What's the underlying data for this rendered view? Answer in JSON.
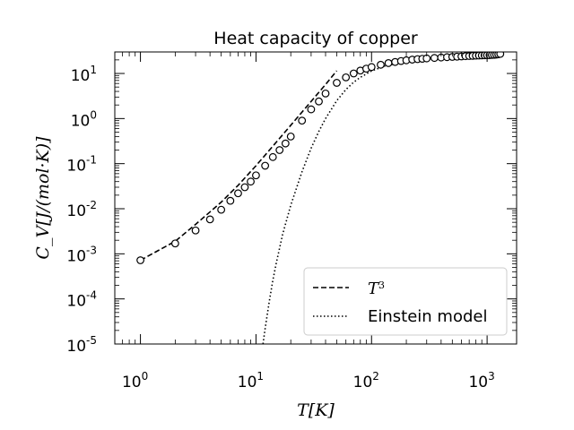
{
  "chart_data": {
    "type": "scatter",
    "title": "Heat capacity of copper",
    "xlabel": "T[K]",
    "ylabel": "C_V[J/(mol·K)]",
    "xscale": "log",
    "yscale": "log",
    "xlim": [
      0.6,
      1800
    ],
    "ylim": [
      1e-05,
      30
    ],
    "grid": false,
    "legend_position": "bottom-right",
    "x_ticks": [
      {
        "base": "10",
        "exp": "0",
        "value": 1
      },
      {
        "base": "10",
        "exp": "1",
        "value": 10
      },
      {
        "base": "10",
        "exp": "2",
        "value": 100
      },
      {
        "base": "10",
        "exp": "3",
        "value": 1000
      }
    ],
    "y_ticks": [
      {
        "base": "10",
        "exp": "1",
        "value": 10
      },
      {
        "base": "10",
        "exp": "0",
        "value": 1
      },
      {
        "base": "10",
        "exp": "-1",
        "value": 0.1
      },
      {
        "base": "10",
        "exp": "-2",
        "value": 0.01
      },
      {
        "base": "10",
        "exp": "-3",
        "value": 0.001
      },
      {
        "base": "10",
        "exp": "-4",
        "value": 0.0001
      },
      {
        "base": "10",
        "exp": "-5",
        "value": 1e-05
      }
    ],
    "series": [
      {
        "kind": "markers",
        "marker": "open-circle",
        "color": "#000000",
        "points": [
          [
            1,
            0.00072
          ],
          [
            2,
            0.0017
          ],
          [
            3,
            0.0033
          ],
          [
            4,
            0.0058
          ],
          [
            5,
            0.0095
          ],
          [
            6,
            0.015
          ],
          [
            7,
            0.022
          ],
          [
            8,
            0.03
          ],
          [
            9,
            0.04
          ],
          [
            10,
            0.055
          ],
          [
            12,
            0.09
          ],
          [
            14,
            0.14
          ],
          [
            16,
            0.2
          ],
          [
            18,
            0.28
          ],
          [
            20,
            0.4
          ],
          [
            25,
            0.9
          ],
          [
            30,
            1.6
          ],
          [
            35,
            2.4
          ],
          [
            40,
            3.6
          ],
          [
            50,
            6.2
          ],
          [
            60,
            8.2
          ],
          [
            70,
            10.0
          ],
          [
            80,
            11.6
          ],
          [
            90,
            12.8
          ],
          [
            100,
            13.9
          ],
          [
            120,
            15.6
          ],
          [
            140,
            17.0
          ],
          [
            160,
            18.0
          ],
          [
            180,
            18.9
          ],
          [
            200,
            19.6
          ],
          [
            225,
            20.3
          ],
          [
            250,
            20.8
          ],
          [
            275,
            21.2
          ],
          [
            300,
            21.6
          ],
          [
            350,
            22.1
          ],
          [
            400,
            22.6
          ],
          [
            450,
            23.0
          ],
          [
            500,
            23.3
          ],
          [
            550,
            23.6
          ],
          [
            600,
            23.9
          ],
          [
            650,
            24.2
          ],
          [
            700,
            24.4
          ],
          [
            750,
            24.6
          ],
          [
            800,
            24.8
          ],
          [
            850,
            25.0
          ],
          [
            900,
            25.1
          ],
          [
            950,
            25.3
          ],
          [
            1000,
            25.4
          ],
          [
            1050,
            25.5
          ],
          [
            1100,
            25.7
          ],
          [
            1150,
            25.9
          ],
          [
            1200,
            26.2
          ],
          [
            1250,
            26.6
          ],
          [
            1300,
            27.2
          ]
        ]
      },
      {
        "name": "T^3",
        "kind": "line",
        "dash": "dashed",
        "color": "#000000",
        "points": [
          [
            1,
            0.00072
          ],
          [
            2,
            0.0019
          ],
          [
            3,
            0.0045
          ],
          [
            4,
            0.0085
          ],
          [
            5,
            0.014
          ],
          [
            7,
            0.033
          ],
          [
            10,
            0.09
          ],
          [
            15,
            0.3
          ],
          [
            20,
            0.71
          ],
          [
            30,
            2.4
          ],
          [
            40,
            5.7
          ],
          [
            50,
            11.5
          ]
        ]
      },
      {
        "name": "Einstein model",
        "kind": "line",
        "dash": "dotted",
        "color": "#000000",
        "points": [
          [
            11.5,
            1e-05
          ],
          [
            12,
            2.2e-05
          ],
          [
            13,
            8.5e-05
          ],
          [
            14,
            0.00026
          ],
          [
            15,
            0.00063
          ],
          [
            17,
            0.0027
          ],
          [
            20,
            0.012
          ],
          [
            25,
            0.066
          ],
          [
            30,
            0.22
          ],
          [
            35,
            0.52
          ],
          [
            40,
            1.0
          ],
          [
            50,
            2.5
          ],
          [
            60,
            4.4
          ],
          [
            70,
            6.4
          ],
          [
            80,
            8.2
          ],
          [
            100,
            11.4
          ],
          [
            130,
            14.6
          ],
          [
            170,
            17.0
          ],
          [
            220,
            19.0
          ],
          [
            300,
            21.0
          ],
          [
            400,
            22.3
          ],
          [
            500,
            23.0
          ],
          [
            700,
            23.7
          ],
          [
            1000,
            24.2
          ],
          [
            1300,
            24.5
          ]
        ]
      }
    ]
  }
}
